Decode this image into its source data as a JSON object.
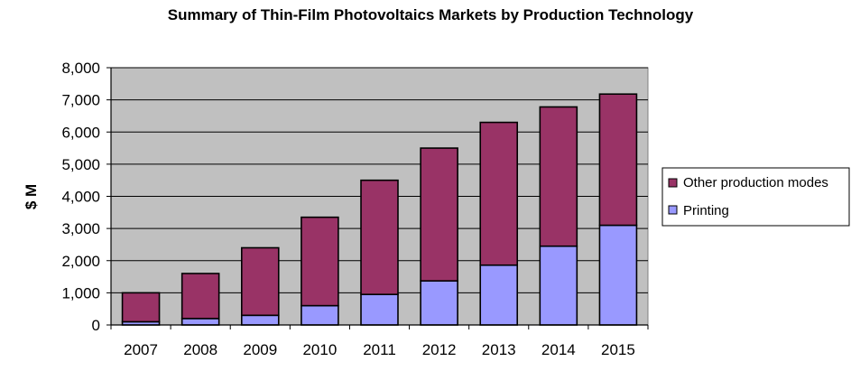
{
  "chart_data": {
    "type": "bar",
    "stacked": true,
    "title": "Summary of Thin-Film Photovoltaics Markets by Production Technology",
    "xlabel": "",
    "ylabel": "$ M",
    "ylim": [
      0,
      8000
    ],
    "yticks": [
      "0",
      "1,000",
      "2,000",
      "3,000",
      "4,000",
      "5,000",
      "6,000",
      "7,000",
      "8,000"
    ],
    "grid": true,
    "legend_position": "right",
    "categories": [
      "2007",
      "2008",
      "2009",
      "2010",
      "2011",
      "2012",
      "2013",
      "2014",
      "2015"
    ],
    "series": [
      {
        "name": "Printing",
        "color": "#9999ff",
        "values": [
          100,
          200,
          300,
          600,
          950,
          1370,
          1860,
          2450,
          3100
        ]
      },
      {
        "name": "Other production modes",
        "color": "#993366",
        "values": [
          900,
          1400,
          2100,
          2750,
          3550,
          4130,
          4440,
          4330,
          4080
        ]
      }
    ],
    "legend_order": [
      "Other production modes",
      "Printing"
    ],
    "plot_background": "#c0c0c0"
  }
}
